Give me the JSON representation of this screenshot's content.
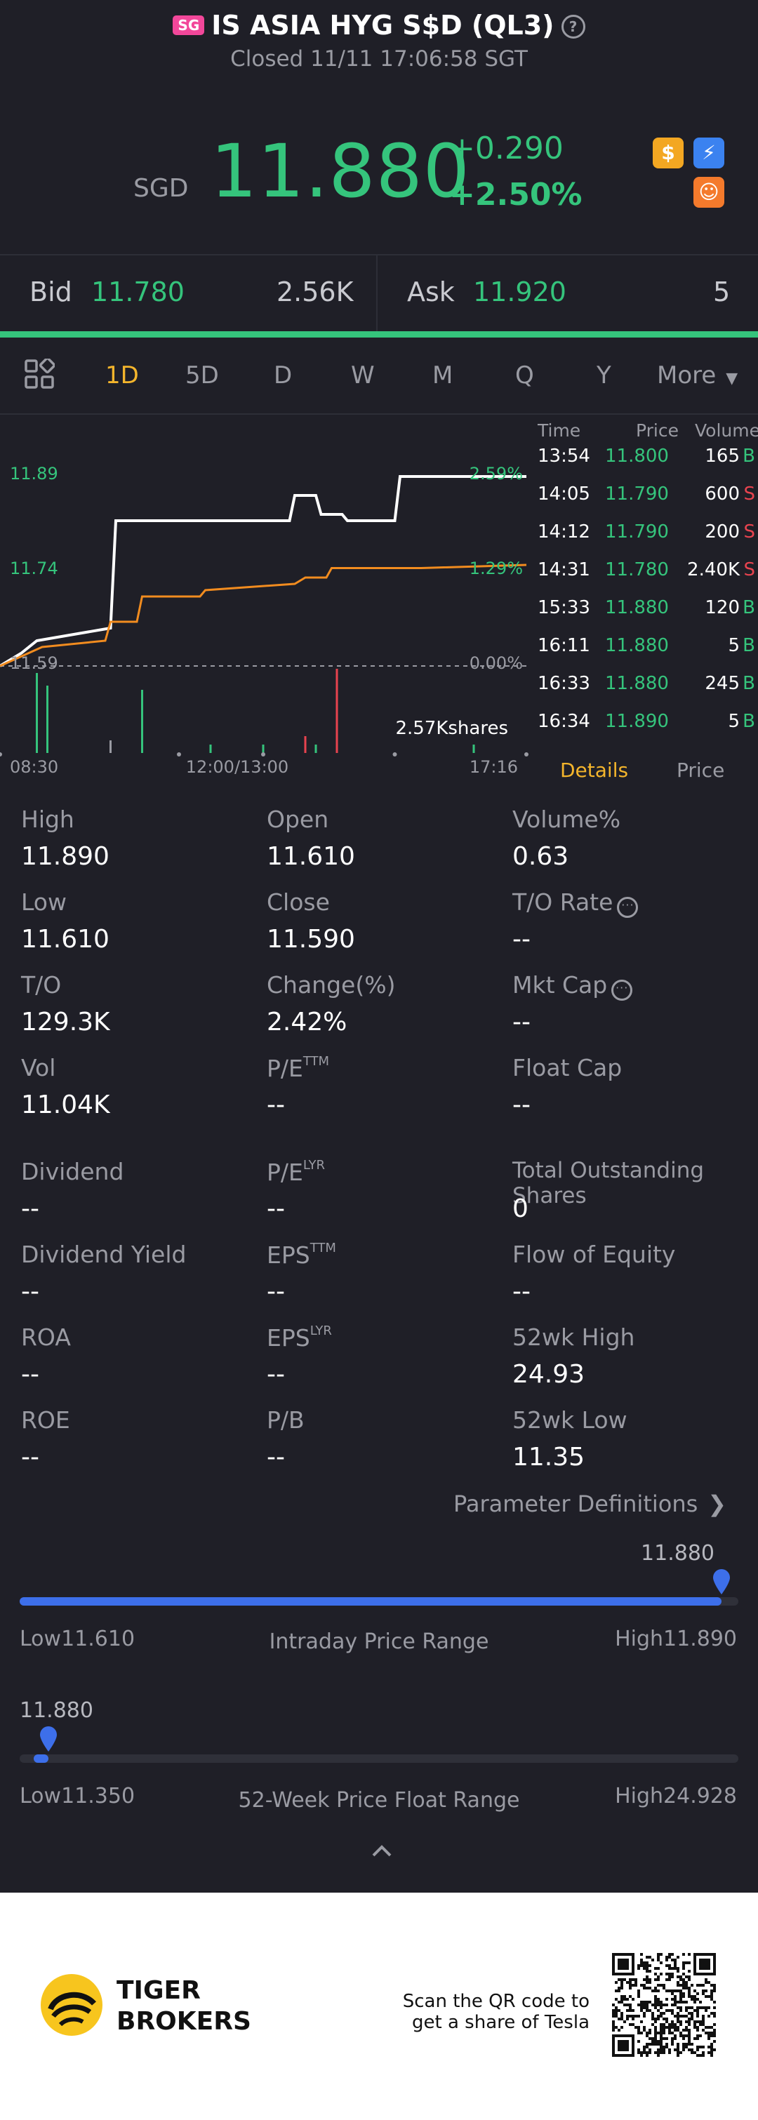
{
  "header": {
    "badge": "SG",
    "title": "IS ASIA HYG S$D (QL3)",
    "help": "?",
    "status": "Closed 11/11 17:06:58 SGT",
    "currency": "SGD",
    "price": "11.880",
    "change": "+0.290",
    "change_pct": "+2.50%",
    "icons": [
      "dollar-icon",
      "flash-icon",
      "smile-icon"
    ]
  },
  "quote": {
    "bid_label": "Bid",
    "bid_price": "11.780",
    "bid_size": "2.56K",
    "ask_label": "Ask",
    "ask_price": "11.920",
    "ask_size": "5"
  },
  "tabs": {
    "items": [
      "1D",
      "5D",
      "D",
      "W",
      "M",
      "Q",
      "Y"
    ],
    "active": "1D",
    "more": "More"
  },
  "chart_data": {
    "type": "line",
    "y_labels": [
      "11.89",
      "11.74",
      "11.59"
    ],
    "pct_labels": [
      "2.59%",
      "1.29%",
      "0.00%"
    ],
    "x_labels": [
      "08:30",
      "12:00/13:00",
      "17:16"
    ],
    "volume_label": "2.57Kshares",
    "ylim": [
      11.59,
      11.89
    ],
    "series": [
      {
        "name": "",
        "color": "#ffffff",
        "points": [
          [
            0,
            11.59
          ],
          [
            0.04,
            11.61
          ],
          [
            0.07,
            11.63
          ],
          [
            0.21,
            11.65
          ],
          [
            0.22,
            11.82
          ],
          [
            0.55,
            11.82
          ],
          [
            0.56,
            11.86
          ],
          [
            0.6,
            11.86
          ],
          [
            0.61,
            11.83
          ],
          [
            0.65,
            11.83
          ],
          [
            0.66,
            11.82
          ],
          [
            0.75,
            11.82
          ],
          [
            0.76,
            11.89
          ],
          [
            0.88,
            11.89
          ],
          [
            1,
            11.89
          ]
        ]
      },
      {
        "name": "",
        "color": "#f28c1f",
        "points": [
          [
            0,
            11.59
          ],
          [
            0.08,
            11.62
          ],
          [
            0.2,
            11.63
          ],
          [
            0.21,
            11.66
          ],
          [
            0.26,
            11.66
          ],
          [
            0.27,
            11.7
          ],
          [
            0.38,
            11.7
          ],
          [
            0.39,
            11.71
          ],
          [
            0.56,
            11.72
          ],
          [
            0.58,
            11.73
          ],
          [
            0.62,
            11.73
          ],
          [
            0.63,
            11.745
          ],
          [
            0.8,
            11.745
          ],
          [
            1,
            11.75
          ]
        ]
      }
    ],
    "volumes": [
      {
        "x": 0.07,
        "v": 0.95,
        "color": "#35c47c"
      },
      {
        "x": 0.09,
        "v": 0.8,
        "color": "#35c47c"
      },
      {
        "x": 0.21,
        "v": 0.15,
        "color": "#9a9ba3"
      },
      {
        "x": 0.27,
        "v": 0.75,
        "color": "#35c47c"
      },
      {
        "x": 0.4,
        "v": 0.1,
        "color": "#35c47c"
      },
      {
        "x": 0.5,
        "v": 0.1,
        "color": "#35c47c"
      },
      {
        "x": 0.58,
        "v": 0.2,
        "color": "#e8434f"
      },
      {
        "x": 0.6,
        "v": 0.1,
        "color": "#35c47c"
      },
      {
        "x": 0.64,
        "v": 1.0,
        "color": "#e8434f"
      },
      {
        "x": 0.9,
        "v": 0.1,
        "color": "#35c47c"
      }
    ]
  },
  "ticks": {
    "headers": {
      "time": "Time",
      "price": "Price",
      "volume": "Volume"
    },
    "rows": [
      {
        "time": "13:54",
        "price": "11.800",
        "vol": "165",
        "side": "B"
      },
      {
        "time": "14:05",
        "price": "11.790",
        "vol": "600",
        "side": "S"
      },
      {
        "time": "14:12",
        "price": "11.790",
        "vol": "200",
        "side": "S"
      },
      {
        "time": "14:31",
        "price": "11.780",
        "vol": "2.40K",
        "side": "S"
      },
      {
        "time": "15:33",
        "price": "11.880",
        "vol": "120",
        "side": "B"
      },
      {
        "time": "16:11",
        "price": "11.880",
        "vol": "5",
        "side": "B"
      },
      {
        "time": "16:33",
        "price": "11.880",
        "vol": "245",
        "side": "B"
      },
      {
        "time": "16:34",
        "price": "11.890",
        "vol": "5",
        "side": "B"
      }
    ],
    "details_tab": "Details",
    "price_tab": "Price"
  },
  "stats": {
    "high_label": "High",
    "high": "11.890",
    "open_label": "Open",
    "open": "11.610",
    "volpct_label": "Volume%",
    "volpct": "0.63",
    "low_label": "Low",
    "low": "11.610",
    "close_label": "Close",
    "close": "11.590",
    "torate_label": "T/O Rate",
    "torate": "--",
    "to_label": "T/O",
    "to": "129.3K",
    "changepct_label": "Change(%)",
    "changepct": "2.42%",
    "mktcap_label": "Mkt Cap",
    "mktcap": "--",
    "vol_label": "Vol",
    "vol": "11.04K",
    "pe_ttm_label": "P/E",
    "pe_ttm_sup": "TTM",
    "pe_ttm": "--",
    "floatcap_label": "Float Cap",
    "floatcap": "--",
    "dividend_label": "Dividend",
    "dividend": "--",
    "pe_lyr_label": "P/E",
    "pe_lyr_sup": "LYR",
    "pe_lyr": "--",
    "tos_label": "Total Outstanding Shares",
    "tos": "0",
    "divyield_label": "Dividend Yield",
    "divyield": "--",
    "eps_ttm_label": "EPS",
    "eps_ttm_sup": "TTM",
    "eps_ttm": "--",
    "flow_label": "Flow of Equity",
    "flow": "--",
    "roa_label": "ROA",
    "roa": "--",
    "eps_lyr_label": "EPS",
    "eps_lyr_sup": "LYR",
    "eps_lyr": "--",
    "wk52h_label": "52wk High",
    "wk52h": "24.93",
    "roe_label": "ROE",
    "roe": "--",
    "pb_label": "P/B",
    "pb": "--",
    "wk52l_label": "52wk Low",
    "wk52l": "11.35",
    "info_glyph": "···",
    "param_link": "Parameter Definitions"
  },
  "intraday": {
    "current": "11.880",
    "low_label": "Low",
    "low": "11.610",
    "title": "Intraday Price Range",
    "high_label": "High",
    "high": "11.890",
    "position": 0.99
  },
  "week52": {
    "current": "11.880",
    "low_label": "Low",
    "low": "11.350",
    "title": "52-Week Price Float Range",
    "high_label": "High",
    "high": "24.928",
    "position": 0.04
  },
  "footer": {
    "brand_line1": "TIGER",
    "brand_line2": "BROKERS",
    "qr_line1": "Scan the QR code to",
    "qr_line2": "get a share of Tesla"
  }
}
